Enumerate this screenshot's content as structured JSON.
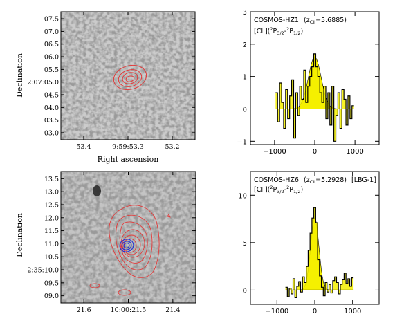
{
  "panels": {
    "img1": {
      "ylabel": "Declination",
      "xlabel": "Right ascension",
      "yticks": [
        "07.5",
        "07.0",
        "06.5",
        "06.0",
        "05.5",
        "2:07:05.0",
        "04.5",
        "04.0",
        "03.5",
        "03.0"
      ],
      "xticks": [
        "53.4",
        "9:59:53.3",
        "53.2"
      ]
    },
    "img2": {
      "ylabel": "Declination",
      "yticks": [
        "13.5",
        "13.0",
        "12.5",
        "12.0",
        "11.5",
        "11.0",
        "10.5",
        "2:35:10.0",
        "09.5",
        "09.0"
      ],
      "xticks": [
        "21.6",
        "10:00:21.5",
        "21.4"
      ]
    },
    "spec1": {
      "name": "COSMOS-HZ1",
      "z_label": "(z",
      "z_sub": "CII",
      "z_value": "=5.6885)",
      "line_main": "[CII](",
      "line_sup1": "2",
      "line_p1": "P",
      "line_sub1": "3/2",
      "line_dash": "-",
      "line_sup2": "2",
      "line_p2": "P",
      "line_sub2": "1/2",
      "line_close": ")"
    },
    "spec2": {
      "name": "COSMOS-HZ6",
      "z_label": "(z",
      "z_sub": "CII",
      "z_value": "=5.2928)",
      "tag": "[LBG-1]",
      "line_main": "[CII](",
      "line_sup1": "2",
      "line_p1": "P",
      "line_sub1": "3/2",
      "line_dash": "-",
      "line_sup2": "2",
      "line_p2": "P",
      "line_sub2": "1/2",
      "line_close": ")"
    }
  },
  "chart_data": [
    {
      "type": "line",
      "ylim": [
        -1.1,
        3
      ],
      "xlim": [
        -1600,
        1600
      ],
      "xticks": [
        -1000,
        0,
        1000
      ],
      "yticks": [
        -1,
        0,
        1,
        2,
        3
      ],
      "xtick_labels": [
        "−1000",
        "0",
        "1000"
      ],
      "ytick_labels": [
        "−1",
        "0",
        "1",
        "2",
        "3"
      ],
      "fill_color": "#f4f000",
      "step_x": [
        -950,
        -900,
        -850,
        -800,
        -750,
        -700,
        -650,
        -600,
        -550,
        -500,
        -450,
        -400,
        -350,
        -300,
        -250,
        -200,
        -150,
        -100,
        -50,
        0,
        50,
        100,
        150,
        200,
        250,
        300,
        350,
        400,
        450,
        500,
        550,
        600,
        650,
        700,
        750,
        800,
        850,
        900,
        950
      ],
      "step_y": [
        0.5,
        -0.4,
        0.8,
        0.2,
        -0.6,
        0.6,
        -0.3,
        0.4,
        0.9,
        -0.9,
        0.5,
        -0.2,
        0.7,
        0.3,
        1.2,
        0.2,
        0.7,
        1.0,
        1.3,
        1.7,
        1.3,
        1.0,
        0.5,
        0.2,
        0.7,
        -0.3,
        0.5,
        -0.5,
        0.7,
        -1.0,
        -0.2,
        0.5,
        -0.6,
        0.6,
        0.3,
        -0.5,
        0.4,
        -0.3,
        0.1
      ],
      "gauss_amp": 1.6,
      "gauss_sigma": 160
    },
    {
      "type": "line",
      "ylim": [
        -1.5,
        12.5
      ],
      "xlim": [
        -1700,
        1700
      ],
      "xticks": [
        -1000,
        0,
        1000
      ],
      "yticks": [
        0,
        5,
        10
      ],
      "xtick_labels": [
        "−1000",
        "0",
        "1000"
      ],
      "ytick_labels": [
        "0",
        "5",
        "10"
      ],
      "fill_color": "#f4f000",
      "step_x": [
        -750,
        -700,
        -650,
        -600,
        -550,
        -500,
        -450,
        -400,
        -350,
        -300,
        -250,
        -200,
        -150,
        -100,
        -50,
        0,
        50,
        100,
        150,
        200,
        250,
        300,
        350,
        400,
        450,
        500,
        550,
        600,
        650,
        700,
        750,
        800,
        850,
        900,
        950,
        1000
      ],
      "step_y": [
        0.3,
        -0.7,
        0.2,
        -0.4,
        1.2,
        -0.8,
        0.4,
        0.9,
        -0.2,
        1.4,
        0.8,
        2.5,
        4.2,
        6.0,
        7.6,
        8.7,
        7.1,
        3.2,
        1.5,
        0.3,
        -0.6,
        0.8,
        -0.2,
        0.6,
        -0.3,
        1.0,
        1.4,
        0.8,
        -0.4,
        0.6,
        1.1,
        1.8,
        0.7,
        1.2,
        0.4,
        1.3
      ],
      "gauss_amp": 7.6,
      "gauss_sigma": 110
    }
  ]
}
